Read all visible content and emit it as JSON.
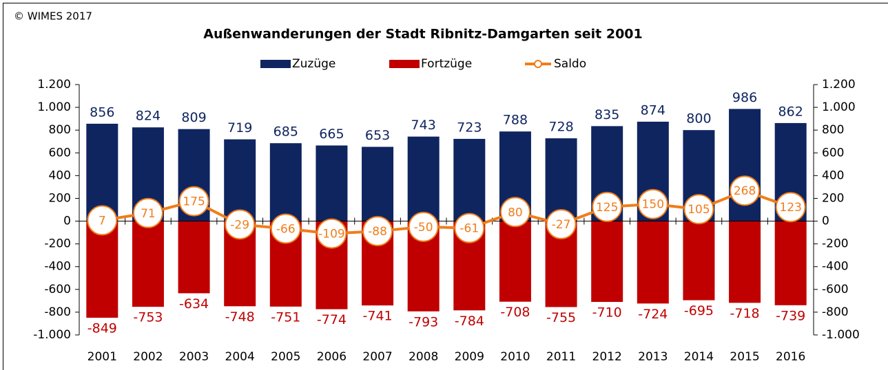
{
  "chart_data": {
    "type": "bar_line",
    "title": "Außenwanderungen der Stadt Ribnitz-Damgarten seit 2001",
    "copyright": "© WIMES 2017",
    "categories": [
      "2001",
      "2002",
      "2003",
      "2004",
      "2005",
      "2006",
      "2007",
      "2008",
      "2009",
      "2010",
      "2011",
      "2012",
      "2013",
      "2014",
      "2015",
      "2016"
    ],
    "series": [
      {
        "name": "Zuzüge",
        "type": "bar",
        "color": "#0f2560",
        "label_color": "#0f2560",
        "values": [
          856,
          824,
          809,
          719,
          685,
          665,
          653,
          743,
          723,
          788,
          728,
          835,
          874,
          800,
          986,
          862
        ]
      },
      {
        "name": "Fortzüge",
        "type": "bar",
        "color": "#c00000",
        "label_color": "#c00000",
        "values": [
          -849,
          -753,
          -634,
          -748,
          -751,
          -774,
          -741,
          -793,
          -784,
          -708,
          -755,
          -710,
          -724,
          -695,
          -718,
          -739
        ]
      },
      {
        "name": "Saldo",
        "type": "line",
        "color": "#f07d1a",
        "label_color": "#f07d1a",
        "values": [
          7,
          71,
          175,
          -29,
          -66,
          -109,
          -88,
          -50,
          -61,
          80,
          -27,
          125,
          150,
          105,
          268,
          123
        ]
      }
    ],
    "ylim": [
      -1000,
      1200
    ],
    "yticks": [
      {
        "value": -1000,
        "label": "-1.000"
      },
      -800,
      -600,
      -400,
      -200,
      0,
      200,
      400,
      600,
      800,
      {
        "value": 1000,
        "label": "1.000"
      },
      {
        "value": 1200,
        "label": "1.200"
      }
    ],
    "y2lim": [
      -1000,
      1200
    ],
    "y2ticks": [
      {
        "value": -1000,
        "label": "-1.000"
      },
      -800,
      -600,
      -400,
      -200,
      0,
      200,
      400,
      600,
      800,
      {
        "value": 1000,
        "label": "1.000"
      },
      {
        "value": 1200,
        "label": "1.200"
      }
    ],
    "legend": "top"
  }
}
